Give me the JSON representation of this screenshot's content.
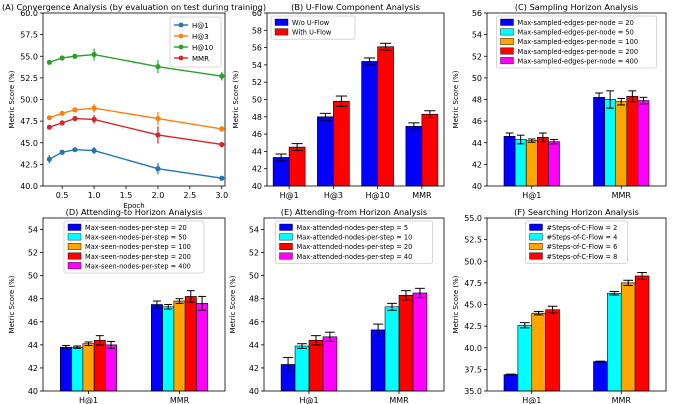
{
  "colors": {
    "blue": "#0000ff",
    "cyan": "#00ffff",
    "orange": "#ffa500",
    "red": "#ff0000",
    "magenta": "#ff00ff",
    "l_blue": "#1f77b4",
    "l_orange": "#ff7f0e",
    "l_green": "#2ca02c",
    "l_red": "#d62728"
  },
  "chart_data": [
    {
      "type": "line",
      "title": "(A) Convergence Analysis (by evaluation on test during training)",
      "xlabel": "Epoch",
      "ylabel": "Metric Score (%)",
      "xlim": [
        0.2,
        3.05
      ],
      "ylim": [
        40.0,
        60.0
      ],
      "xticks": [
        "0.5",
        "1.0",
        "1.5",
        "2.0",
        "2.5",
        "3.0"
      ],
      "yticks": [
        "40.0",
        "42.5",
        "45.0",
        "47.5",
        "50.0",
        "52.5",
        "55.0",
        "57.5",
        "60.0"
      ],
      "legend_loc": "top-right",
      "x": [
        0.3,
        0.5,
        0.7,
        1.0,
        2.0,
        3.0
      ],
      "series": [
        {
          "name": "H@1",
          "color": "l_blue",
          "values": [
            43.1,
            43.9,
            44.2,
            44.1,
            42.0,
            40.9
          ],
          "err": [
            0.5,
            0.25,
            0.2,
            0.4,
            0.65,
            0.2
          ]
        },
        {
          "name": "H@3",
          "color": "l_orange",
          "values": [
            47.9,
            48.4,
            48.8,
            49.0,
            47.8,
            46.6
          ],
          "err": [
            0.25,
            0.2,
            0.2,
            0.5,
            0.75,
            0.35
          ]
        },
        {
          "name": "H@10",
          "color": "l_green",
          "values": [
            54.3,
            54.8,
            55.0,
            55.2,
            53.8,
            52.7
          ],
          "err": [
            0.2,
            0.2,
            0.2,
            0.7,
            0.75,
            0.5
          ]
        },
        {
          "name": "MMR",
          "color": "l_red",
          "values": [
            46.8,
            47.3,
            47.8,
            47.7,
            45.9,
            44.8
          ],
          "err": [
            0.25,
            0.2,
            0.2,
            0.5,
            1.0,
            0.15
          ]
        }
      ]
    },
    {
      "type": "bar",
      "title": "(B) U-Flow Component Analysis",
      "ylabel": "Metric Score (%)",
      "categories": [
        "H@1",
        "H@3",
        "H@10",
        "MMR"
      ],
      "ylim": [
        40,
        60
      ],
      "yticks": [
        "40",
        "42",
        "44",
        "46",
        "48",
        "50",
        "52",
        "54",
        "56",
        "58",
        "60"
      ],
      "legend_loc": "top-left",
      "series": [
        {
          "name": "W/o U-Flow",
          "color": "blue",
          "values": [
            43.3,
            48.0,
            54.4,
            46.9
          ],
          "err": [
            0.4,
            0.4,
            0.4,
            0.4
          ]
        },
        {
          "name": "With U-Flow",
          "color": "red",
          "values": [
            44.5,
            49.8,
            56.1,
            48.3
          ],
          "err": [
            0.4,
            0.6,
            0.4,
            0.4
          ]
        }
      ]
    },
    {
      "type": "bar",
      "title": "(C) Sampling Horizon Analysis",
      "ylabel": "Metric Score (%)",
      "categories": [
        "H@1",
        "MMR"
      ],
      "ylim": [
        40,
        56
      ],
      "yticks": [
        "40",
        "42",
        "44",
        "46",
        "48",
        "50",
        "52",
        "54",
        "56"
      ],
      "legend_loc": "top",
      "series": [
        {
          "name": "Max-sampled-edges-per-node = 20",
          "color": "blue",
          "values": [
            44.6,
            48.2
          ],
          "err": [
            0.3,
            0.4
          ]
        },
        {
          "name": "Max-sampled-edges-per-node = 50",
          "color": "cyan",
          "values": [
            44.3,
            48.0
          ],
          "err": [
            0.4,
            0.8
          ]
        },
        {
          "name": "Max-sampled-edges-per-node = 100",
          "color": "orange",
          "values": [
            44.2,
            47.8
          ],
          "err": [
            0.15,
            0.3
          ]
        },
        {
          "name": "Max-sampled-edges-per-node = 200",
          "color": "red",
          "values": [
            44.5,
            48.3
          ],
          "err": [
            0.4,
            0.5
          ]
        },
        {
          "name": "Max-sampled-edges-per-node = 400",
          "color": "magenta",
          "values": [
            44.1,
            47.9
          ],
          "err": [
            0.2,
            0.3
          ]
        }
      ]
    },
    {
      "type": "bar",
      "title": "(D) Attending-to Horizon Analysis",
      "ylabel": "Metric Score (%)",
      "categories": [
        "H@1",
        "MMR"
      ],
      "ylim": [
        40,
        55
      ],
      "yticks": [
        "40",
        "42",
        "44",
        "46",
        "48",
        "50",
        "52",
        "54"
      ],
      "legend_loc": "top",
      "series": [
        {
          "name": "Max-seen-nodes-per-step = 20",
          "color": "blue",
          "values": [
            43.8,
            47.5
          ],
          "err": [
            0.15,
            0.3
          ]
        },
        {
          "name": "Max-seen-nodes-per-step = 50",
          "color": "cyan",
          "values": [
            43.8,
            47.3
          ],
          "err": [
            0.1,
            0.2
          ]
        },
        {
          "name": "Max-seen-nodes-per-step = 100",
          "color": "orange",
          "values": [
            44.1,
            47.8
          ],
          "err": [
            0.15,
            0.2
          ]
        },
        {
          "name": "Max-seen-nodes-per-step = 200",
          "color": "red",
          "values": [
            44.4,
            48.2
          ],
          "err": [
            0.4,
            0.5
          ]
        },
        {
          "name": "Max-seen-nodes-per-step = 400",
          "color": "magenta",
          "values": [
            44.0,
            47.6
          ],
          "err": [
            0.3,
            0.6
          ]
        }
      ]
    },
    {
      "type": "bar",
      "title": "(E) Attending-from Horizon Analysis",
      "ylabel": "Metric Score (%)",
      "categories": [
        "H@1",
        "MMR"
      ],
      "ylim": [
        40,
        55
      ],
      "yticks": [
        "40",
        "42",
        "44",
        "46",
        "48",
        "50",
        "52",
        "54"
      ],
      "legend_loc": "top",
      "series": [
        {
          "name": "Max-attended-nodes-per-step = 5",
          "color": "blue",
          "values": [
            42.3,
            45.3
          ],
          "err": [
            0.6,
            0.5
          ]
        },
        {
          "name": "Max-attended-nodes-per-step = 10",
          "color": "cyan",
          "values": [
            43.9,
            47.3
          ],
          "err": [
            0.2,
            0.3
          ]
        },
        {
          "name": "Max-attended-nodes-per-step = 20",
          "color": "red",
          "values": [
            44.4,
            48.3
          ],
          "err": [
            0.4,
            0.4
          ]
        },
        {
          "name": "Max-attended-nodes-per-step = 40",
          "color": "magenta",
          "values": [
            44.7,
            48.5
          ],
          "err": [
            0.4,
            0.4
          ]
        }
      ]
    },
    {
      "type": "bar",
      "title": "(F) Searching Horizon Analysis",
      "ylabel": "Metric Score (%)",
      "categories": [
        "H@1",
        "MMR"
      ],
      "ylim": [
        35,
        55
      ],
      "yticks": [
        "35.0",
        "37.5",
        "40.0",
        "42.5",
        "45.0",
        "47.5",
        "50.0",
        "52.5",
        "55.0"
      ],
      "legend_loc": "top",
      "series": [
        {
          "name": "#Steps-of-C-Flow = 2",
          "color": "blue",
          "values": [
            36.9,
            38.4
          ],
          "err": [
            0.05,
            0.05
          ]
        },
        {
          "name": "#Steps-of-C-Flow = 4",
          "color": "cyan",
          "values": [
            42.6,
            46.3
          ],
          "err": [
            0.3,
            0.2
          ]
        },
        {
          "name": "#Steps-of-C-Flow = 6",
          "color": "orange",
          "values": [
            44.0,
            47.5
          ],
          "err": [
            0.2,
            0.3
          ]
        },
        {
          "name": "#Steps-of-C-Flow = 8",
          "color": "red",
          "values": [
            44.4,
            48.3
          ],
          "err": [
            0.4,
            0.4
          ]
        }
      ]
    }
  ]
}
